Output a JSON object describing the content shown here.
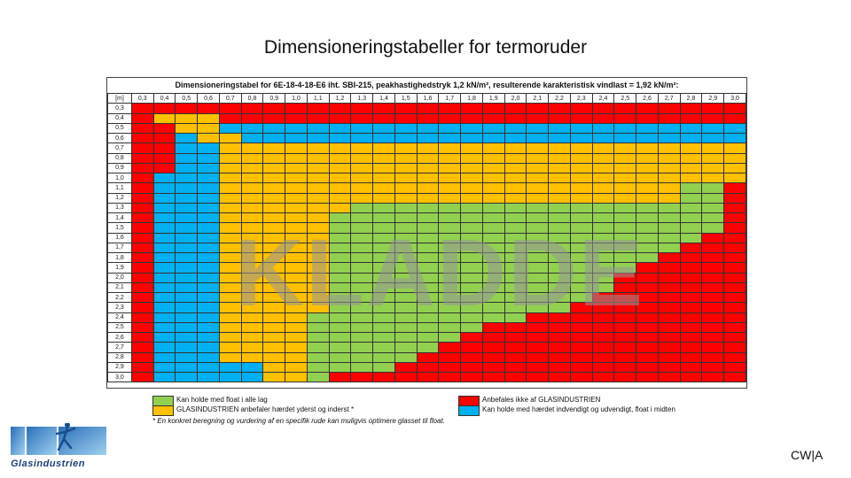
{
  "slide_title": "Dimensioneringstabeller for termoruder",
  "table": {
    "title": "Dimensioneringstabel for 6E-18-4-18-E6 iht. SBI-215, peakhastighedstryk 1,2 kN/m², resulterende karakteristisk vindlast = 1,92 kN/m²:",
    "corner_label": "[m]",
    "columns": [
      "0,3",
      "0,4",
      "0,5",
      "0,6",
      "0,7",
      "0,8",
      "0,9",
      "1,0",
      "1,1",
      "1,2",
      "1,3",
      "1,4",
      "1,5",
      "1,6",
      "1,7",
      "1,8",
      "1,9",
      "2,0",
      "2,1",
      "2,2",
      "2,3",
      "2,4",
      "2,5",
      "2,6",
      "2,7",
      "2,8",
      "2,9",
      "3,0"
    ],
    "rows": [
      "0,3",
      "0,4",
      "0,5",
      "0,6",
      "0,7",
      "0,8",
      "0,9",
      "1,0",
      "1,1",
      "1,2",
      "1,3",
      "1,4",
      "1,5",
      "1,6",
      "1,7",
      "1,8",
      "1,9",
      "2,0",
      "2,1",
      "2,2",
      "2,3",
      "2,4",
      "2,5",
      "2,6",
      "2,7",
      "2,8",
      "2,9",
      "3,0"
    ],
    "color_codes": {
      "G": "#92d050",
      "O": "#ffc000",
      "R": "#ff0000",
      "B": "#00b0f0"
    },
    "cells": [
      "RRRRRRRRRRRRRRRRRRRRRRRRRRRR",
      "ROOORRRRRRRRRRRRRRRRRRRRRRRR",
      "RROOBBBBBBBBBBBBBBBBBBBBBBBB",
      "RRBOOBBBBBBBBBBBBBBBBBBBBBBB",
      "RRBBOOOOOOOOOOOOOOOOOOOOOOOO",
      "RRBBOOOOOOOOOOOOOOOOOOOOOOOO",
      "RRBBOOOOOOOOOOOOOOOOOOOOOOOO",
      "RBBBOOOOOOOOOOOOOOOOOOOOOOOO",
      "RBBBOOOOOOOOOOOOOOOOOOOOOGGR",
      "RBBBOOOOOOOOOOOOOOOOOOOOOGGR",
      "RBBBOOOOOOGGGGGGGGGGGGGGGGGR",
      "RBBBOOOOOGGGGGGGGGGGGGGGGGGR",
      "RBBBOOOOOGGGGGGGGGGGGGGGGGGR",
      "RBBBOOOOOGGGGGGGGGGGGGGGGGRR",
      "RBBBOOOOOGGGGGGGGGGGGGGGGRRR",
      "RBBBOOOOOGGGGGGGGGGGGGGGRRRR",
      "RBBBOOOOOGGGGGGGGGGGGGGRRRRR",
      "RBBBOOOOOGGGGGGGGGGGGGRRRRRR",
      "RBBBOOOOOGGGGGGGGGGGGGRRRRRR",
      "RBBBOOOOOGGGGGGGGGGGGRRRRRRR",
      "RBBBOOOOOGGGGGGGGGGGRRRRRRRR",
      "RBBBOOOOGGGGGGGGGGRRRRRRRRRR",
      "RBBBOOOOGGGGGGGGRRRRRRRRRRRR",
      "RBBBOOOOGGGGGGGRRRRRRRRRRRRR",
      "RBBBOOOOGGGGGGRRRRRRRRRRRRRR",
      "RBBBOOOOGGGGGRRRRRRRRRRRRRRR",
      "RBBBBBOOGGGGRRRRRRRRRRRRRRRR",
      "RBBBBBOOGRRRRRRRRRRRRRRRRRRR"
    ]
  },
  "watermark": "KLADDE",
  "legend": {
    "green": {
      "label": "Kan holde med float i alle lag",
      "color": "#92d050"
    },
    "orange": {
      "label": "GLASINDUSTRIEN anbefaler hærdet yderst og inderst *",
      "color": "#ffc000"
    },
    "red": {
      "label": "Anbefales ikke af GLASINDUSTRIEN",
      "color": "#ff0000"
    },
    "blue": {
      "label": "Kan holde med hærdet indvendigt og udvendigt, float i midten",
      "color": "#00b0f0"
    }
  },
  "footnote": "* En konkret beregning og vurdering af en specifik rude kan muligvis optimere glasset til float.",
  "logo_text": "Glasindustrien",
  "footer_code": "CW|A"
}
